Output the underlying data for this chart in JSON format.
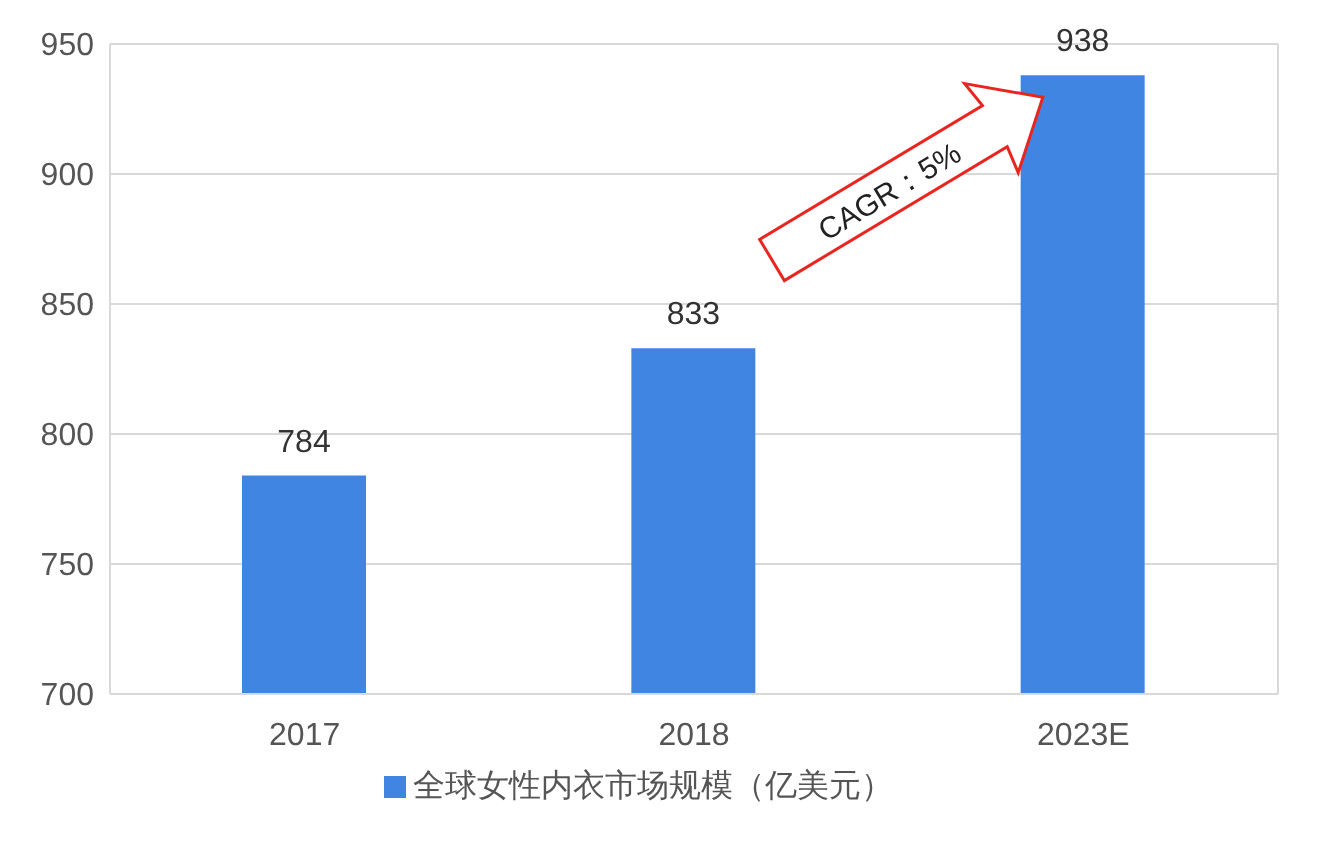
{
  "chart_data": {
    "type": "bar",
    "categories": [
      "2017",
      "2018",
      "2023E"
    ],
    "series": [
      {
        "name": "全球女性内衣市场规模（亿美元）",
        "color": "#4185e3",
        "values": [
          784,
          833,
          938
        ]
      }
    ],
    "ylim": [
      700,
      950
    ],
    "yticks": [
      700,
      750,
      800,
      850,
      900,
      950
    ],
    "grid": "y",
    "legend": "bottom",
    "data_labels": true,
    "annotations": [
      "CAGR：5%"
    ]
  }
}
